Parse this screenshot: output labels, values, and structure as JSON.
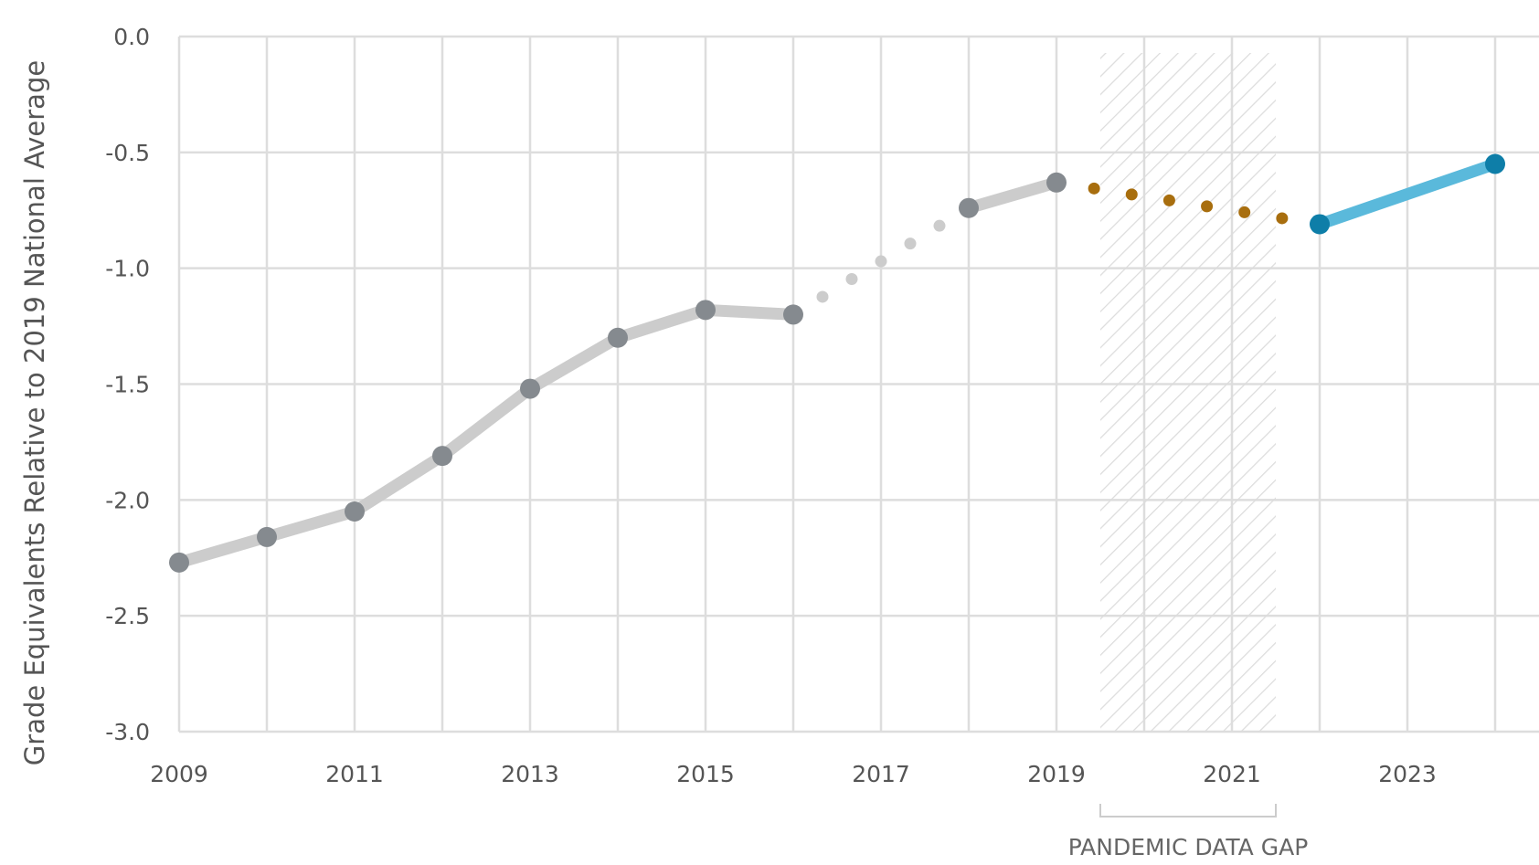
{
  "chart_data": {
    "type": "line",
    "ylabel": "Grade Equivalents Relative to 2019 National Average",
    "xlabel": "",
    "xlim": [
      2009,
      2024.5
    ],
    "ylim": [
      -3.0,
      0.0
    ],
    "x_ticks": [
      2009,
      2011,
      2013,
      2015,
      2017,
      2019,
      2021,
      2023
    ],
    "x_tick_labels": [
      "2009",
      "2011",
      "2013",
      "2015",
      "2017",
      "2019",
      "2021",
      "2023"
    ],
    "y_ticks": [
      0.0,
      -0.5,
      -1.0,
      -1.5,
      -2.0,
      -2.5,
      -3.0
    ],
    "y_tick_labels": [
      "0.0",
      "-0.5",
      "-1.0",
      "-1.5",
      "-2.0",
      "-2.5",
      "-3.0"
    ],
    "grid": true,
    "series": [
      {
        "style": "solid",
        "color": "#cccccc",
        "marker_color": "#858a8f",
        "points": [
          {
            "x": 2009,
            "y": -2.27
          },
          {
            "x": 2010,
            "y": -2.16
          },
          {
            "x": 2011,
            "y": -2.05
          },
          {
            "x": 2012,
            "y": -1.81
          },
          {
            "x": 2013,
            "y": -1.52
          },
          {
            "x": 2014,
            "y": -1.3
          },
          {
            "x": 2015,
            "y": -1.18
          },
          {
            "x": 2016,
            "y": -1.2
          }
        ]
      },
      {
        "style": "dotted",
        "color": "#cccccc",
        "points": [
          {
            "x": 2016,
            "y": -1.2
          },
          {
            "x": 2018,
            "y": -0.74
          }
        ]
      },
      {
        "style": "solid",
        "color": "#cccccc",
        "marker_color": "#858a8f",
        "points": [
          {
            "x": 2018,
            "y": -0.74
          },
          {
            "x": 2019,
            "y": -0.63
          }
        ]
      },
      {
        "style": "dotted",
        "color": "#a86e0e",
        "points": [
          {
            "x": 2019,
            "y": -0.63
          },
          {
            "x": 2022,
            "y": -0.81
          }
        ]
      },
      {
        "style": "solid",
        "color": "#5ab9db",
        "marker_color": "#0e7ea8",
        "points": [
          {
            "x": 2022,
            "y": -0.81
          },
          {
            "x": 2024,
            "y": -0.55
          }
        ]
      }
    ],
    "annotations": [
      {
        "text": "PANDEMIC DATA GAP",
        "x_start": 2019.5,
        "x_end": 2021.5
      }
    ]
  },
  "colors": {
    "grid": "#dddddd",
    "hatch": "#dcdcdc",
    "tick_text": "#555555"
  }
}
